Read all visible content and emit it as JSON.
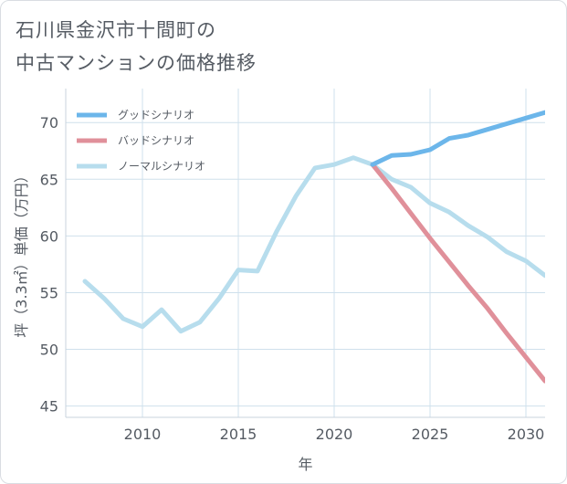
{
  "title_lines": [
    "石川県金沢市十間町の",
    "中古マンションの価格推移"
  ],
  "chart_data": {
    "type": "line",
    "xlabel": "年",
    "ylabel": "坪（3.3㎡）単価（万円）",
    "xlim": [
      2006,
      2031
    ],
    "ylim": [
      44,
      73
    ],
    "xticks": [
      2010,
      2015,
      2020,
      2025,
      2030
    ],
    "yticks": [
      45,
      50,
      55,
      60,
      65,
      70
    ],
    "grid": true,
    "legend_position": "top-left",
    "series": [
      {
        "name": "グッドシナリオ",
        "color": "#6cb6ea",
        "x": [
          2022,
          2023,
          2024,
          2025,
          2026,
          2027,
          2028,
          2029,
          2030,
          2031
        ],
        "y": [
          66.3,
          67.1,
          67.2,
          67.6,
          68.6,
          68.9,
          69.4,
          69.9,
          70.4,
          70.9
        ]
      },
      {
        "name": "バッドシナリオ",
        "color": "#e0909a",
        "x": [
          2022,
          2023,
          2024,
          2025,
          2026,
          2027,
          2028,
          2029,
          2030,
          2031
        ],
        "y": [
          66.3,
          64.2,
          62.0,
          59.8,
          57.7,
          55.6,
          53.6,
          51.4,
          49.3,
          47.2
        ]
      },
      {
        "name": "ノーマルシナリオ",
        "color": "#b7dded",
        "x": [
          2007,
          2008,
          2009,
          2010,
          2011,
          2012,
          2013,
          2014,
          2015,
          2016,
          2017,
          2018,
          2019,
          2020,
          2021,
          2022,
          2023,
          2024,
          2025,
          2026,
          2027,
          2028,
          2029,
          2030,
          2031
        ],
        "y": [
          56.0,
          54.5,
          52.7,
          52.0,
          53.5,
          51.6,
          52.4,
          54.5,
          57.0,
          56.9,
          60.4,
          63.5,
          66.0,
          66.3,
          66.9,
          66.3,
          65.0,
          64.3,
          62.9,
          62.1,
          60.9,
          59.9,
          58.6,
          57.8,
          56.5
        ]
      }
    ]
  }
}
